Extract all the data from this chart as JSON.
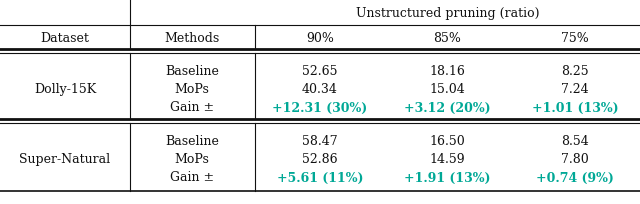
{
  "title": "Unstructured pruning (ratio)",
  "col_headers": [
    "Dataset",
    "Methods",
    "90%",
    "85%",
    "75%"
  ],
  "sections": [
    {
      "dataset": "Dolly-15K",
      "rows": [
        {
          "method": "Baseline",
          "v90": "52.65",
          "v85": "18.16",
          "v75": "8.25",
          "colored": false
        },
        {
          "method": "MoPs",
          "v90": "40.34",
          "v85": "15.04",
          "v75": "7.24",
          "colored": false
        },
        {
          "method": "Gain ±",
          "v90": "+12.31 (30%)",
          "v85": "+3.12 (20%)",
          "v75": "+1.01 (13%)",
          "colored": true
        }
      ]
    },
    {
      "dataset": "Super-Natural",
      "rows": [
        {
          "method": "Baseline",
          "v90": "58.47",
          "v85": "16.50",
          "v75": "8.54",
          "colored": false
        },
        {
          "method": "MoPs",
          "v90": "52.86",
          "v85": "14.59",
          "v75": "7.80",
          "colored": false
        },
        {
          "method": "Gain ±",
          "v90": "+5.61 (11%)",
          "v85": "+1.91 (13%)",
          "v75": "+0.74 (9%)",
          "colored": true
        }
      ]
    }
  ],
  "teal_color": "#00A896",
  "text_color": "#111111",
  "bg_color": "#ffffff",
  "fontsize": 9.0
}
